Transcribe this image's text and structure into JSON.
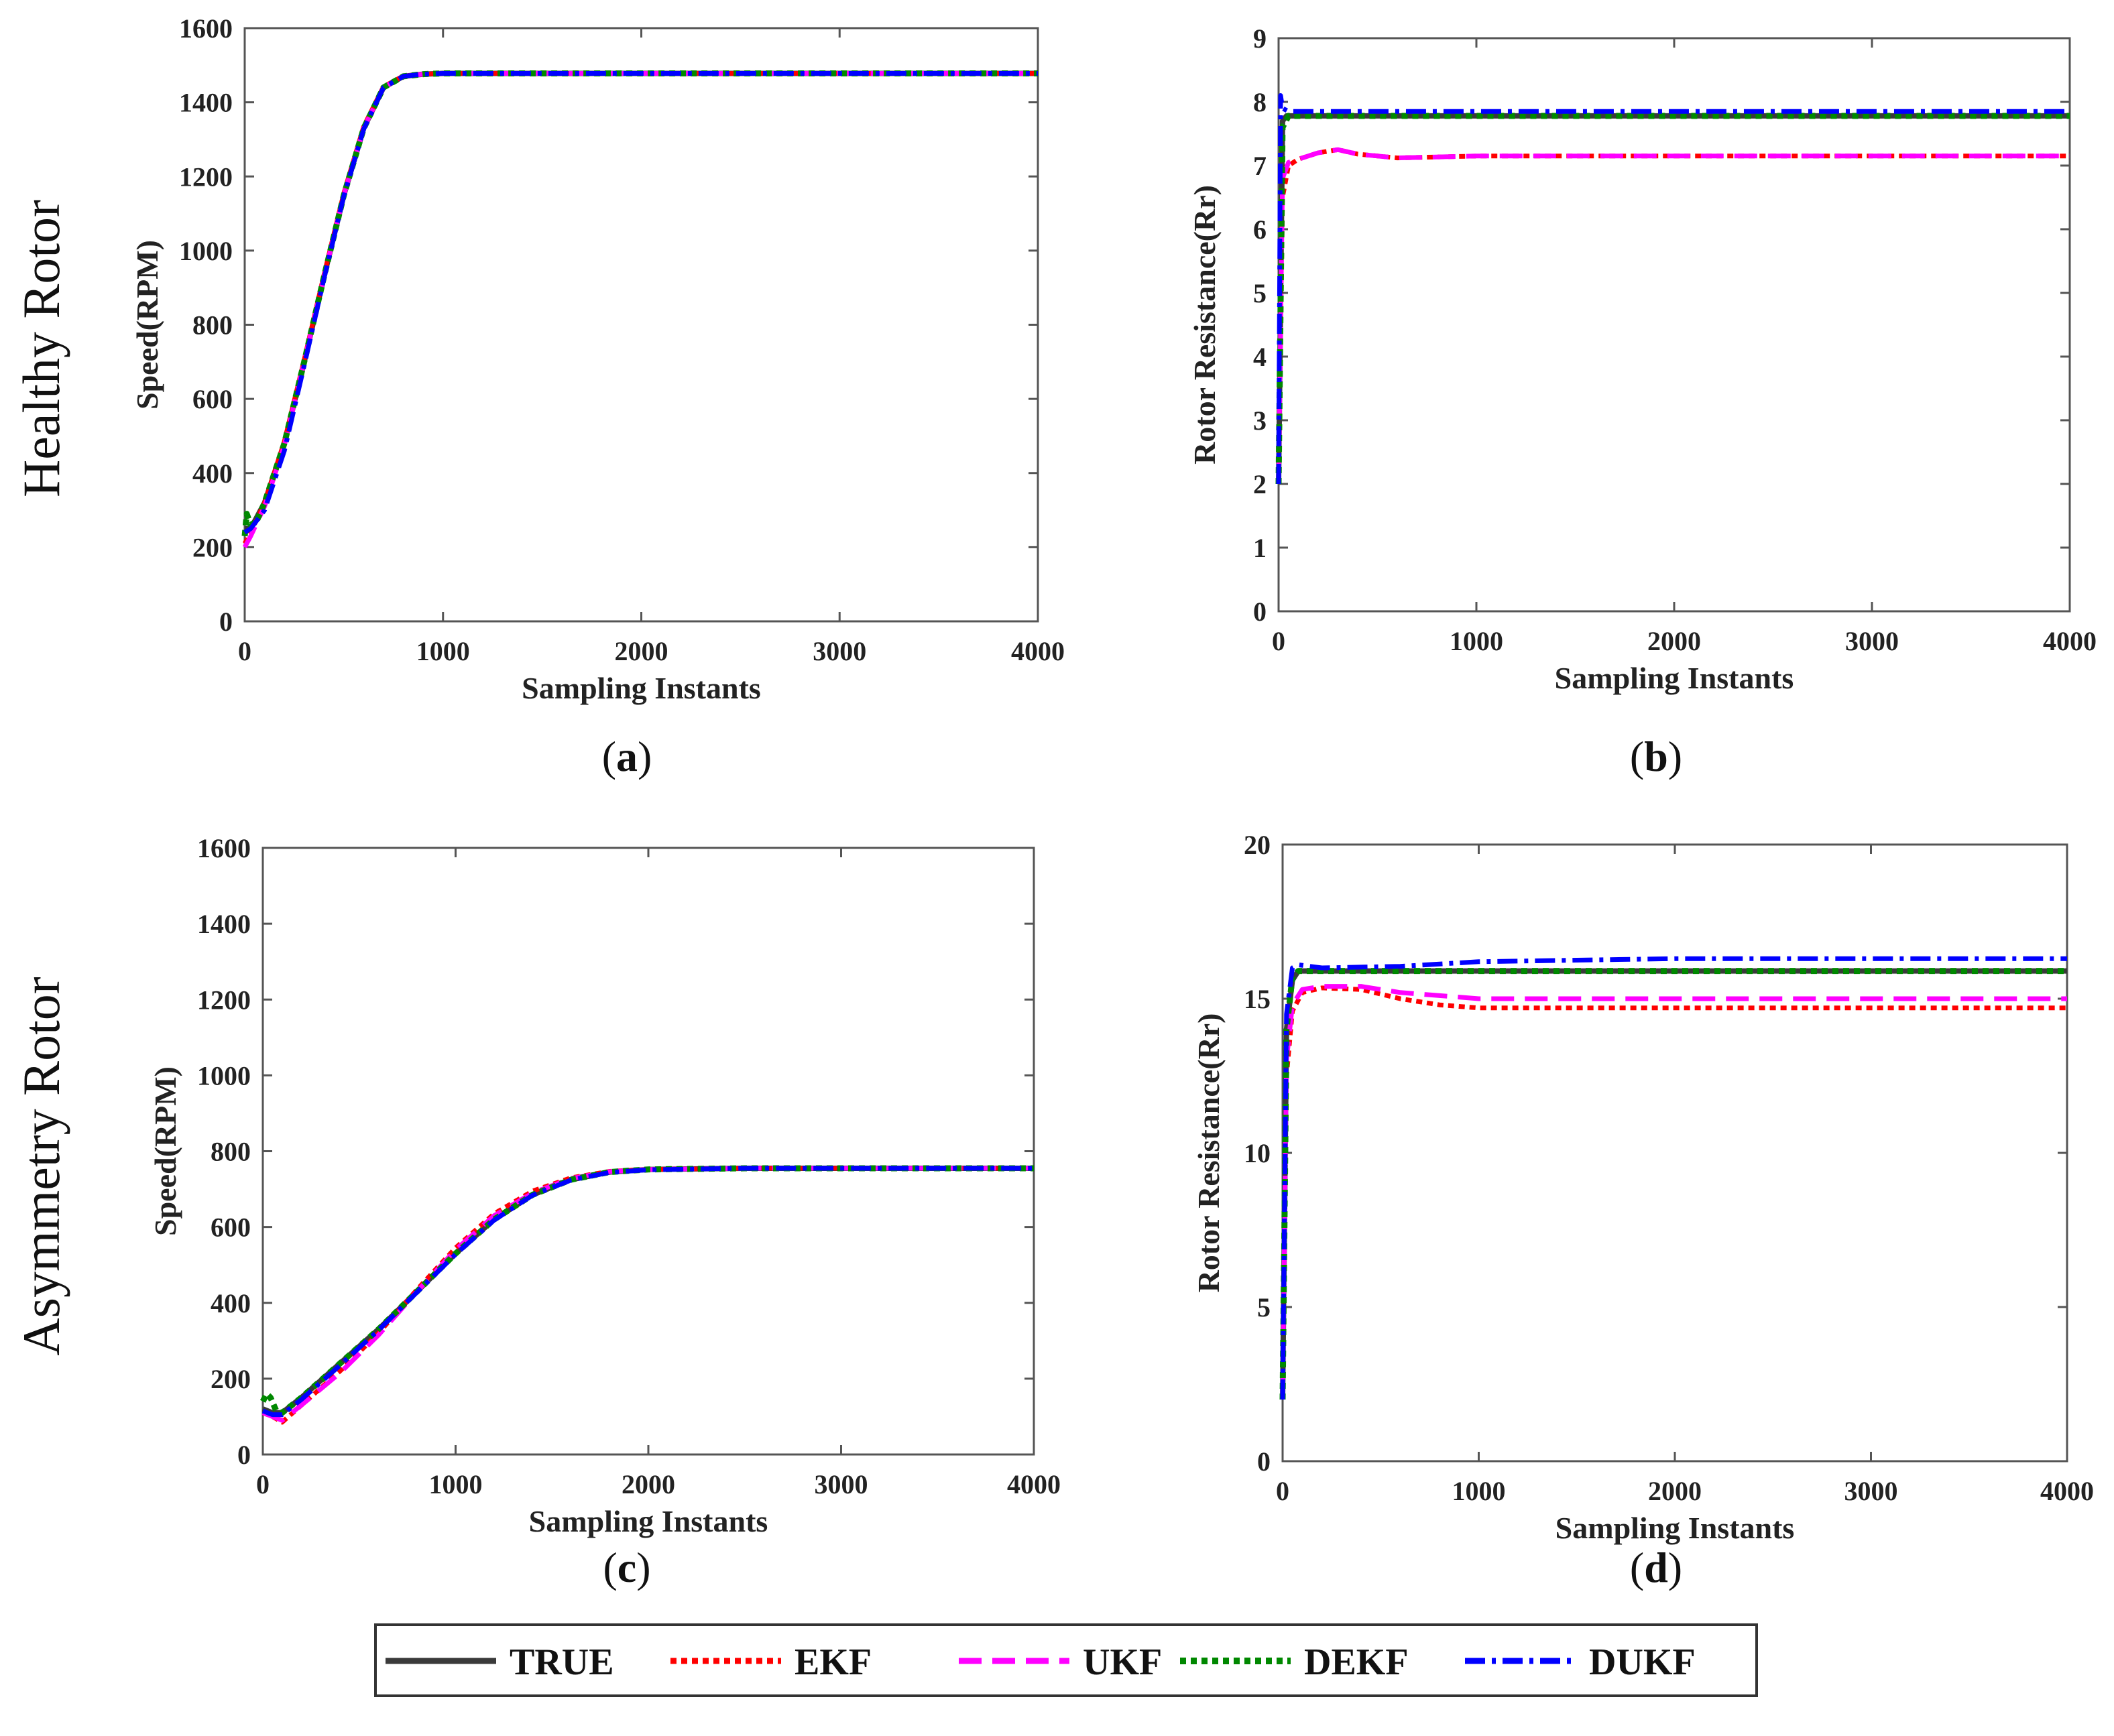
{
  "row_labels": [
    "Healthy Rotor",
    "Asymmetry Rotor"
  ],
  "legend": [
    {
      "label": "TRUE",
      "color": "#3a3a3a",
      "style": "solid"
    },
    {
      "label": "EKF",
      "color": "#ff0000",
      "style": "dotted"
    },
    {
      "label": "UKF",
      "color": "#ff00ff",
      "style": "dashed"
    },
    {
      "label": "DEKF",
      "color": "#008800",
      "style": "dotted"
    },
    {
      "label": "DUKF",
      "color": "#0000ff",
      "style": "dashdot"
    }
  ],
  "chart_data": [
    {
      "id": "a",
      "type": "line",
      "caption": "a",
      "xlabel": "Sampling Instants",
      "ylabel": "Speed(RPM)",
      "xlim": [
        0,
        4000
      ],
      "ylim": [
        0,
        1600
      ],
      "xticks": [
        0,
        1000,
        2000,
        3000,
        4000
      ],
      "yticks": [
        0,
        200,
        400,
        600,
        800,
        1000,
        1200,
        1400,
        1600
      ],
      "series": [
        {
          "name": "TRUE",
          "x": [
            0,
            30,
            100,
            200,
            300,
            400,
            500,
            600,
            700,
            800,
            900,
            1000,
            1500,
            4000
          ],
          "y": [
            250,
            250,
            320,
            480,
            700,
            930,
            1150,
            1330,
            1440,
            1470,
            1476,
            1478,
            1478,
            1478
          ]
        },
        {
          "name": "EKF",
          "x": [
            0,
            30,
            100,
            200,
            300,
            400,
            500,
            600,
            700,
            800,
            900,
            1000,
            1500,
            4000
          ],
          "y": [
            210,
            240,
            320,
            485,
            705,
            935,
            1155,
            1335,
            1442,
            1471,
            1476,
            1478,
            1478,
            1478
          ]
        },
        {
          "name": "UKF",
          "x": [
            0,
            30,
            100,
            200,
            300,
            400,
            500,
            600,
            700,
            800,
            900,
            1000,
            1500,
            4000
          ],
          "y": [
            200,
            230,
            310,
            475,
            700,
            930,
            1150,
            1330,
            1440,
            1470,
            1476,
            1478,
            1478,
            1478
          ]
        },
        {
          "name": "DEKF",
          "x": [
            0,
            10,
            30,
            60,
            100,
            200,
            300,
            400,
            500,
            600,
            700,
            800,
            900,
            1000,
            1500,
            4000
          ],
          "y": [
            230,
            290,
            260,
            270,
            320,
            480,
            700,
            930,
            1150,
            1330,
            1440,
            1470,
            1476,
            1478,
            1478,
            1478
          ]
        },
        {
          "name": "DUKF",
          "x": [
            0,
            30,
            100,
            200,
            300,
            400,
            500,
            600,
            700,
            800,
            900,
            1000,
            1500,
            4000
          ],
          "y": [
            240,
            250,
            300,
            460,
            690,
            925,
            1148,
            1328,
            1440,
            1470,
            1476,
            1478,
            1478,
            1478
          ]
        }
      ]
    },
    {
      "id": "b",
      "type": "line",
      "caption": "b",
      "xlabel": "Sampling Instants",
      "ylabel": "Rotor Resistance(Rr)",
      "xlim": [
        0,
        4000
      ],
      "ylim": [
        0,
        9
      ],
      "xticks": [
        0,
        1000,
        2000,
        3000,
        4000
      ],
      "yticks": [
        0,
        1,
        2,
        3,
        4,
        5,
        6,
        7,
        8,
        9
      ],
      "series": [
        {
          "name": "TRUE",
          "x": [
            0,
            20,
            40,
            4000
          ],
          "y": [
            2,
            7.7,
            7.78,
            7.78
          ]
        },
        {
          "name": "EKF",
          "x": [
            0,
            20,
            50,
            100,
            200,
            300,
            400,
            600,
            1000,
            4000
          ],
          "y": [
            2,
            6.5,
            7.0,
            7.1,
            7.2,
            7.25,
            7.18,
            7.12,
            7.15,
            7.15
          ]
        },
        {
          "name": "UKF",
          "x": [
            0,
            20,
            50,
            100,
            200,
            300,
            400,
            600,
            1000,
            4000
          ],
          "y": [
            2,
            6.8,
            7.05,
            7.1,
            7.2,
            7.25,
            7.18,
            7.12,
            7.15,
            7.15
          ]
        },
        {
          "name": "DEKF",
          "x": [
            0,
            20,
            50,
            4000
          ],
          "y": [
            2,
            7.6,
            7.78,
            7.78
          ]
        },
        {
          "name": "DUKF",
          "x": [
            0,
            10,
            20,
            50,
            4000
          ],
          "y": [
            2,
            8.1,
            7.9,
            7.85,
            7.85
          ]
        }
      ]
    },
    {
      "id": "c",
      "type": "line",
      "caption": "c",
      "xlabel": "Sampling Instants",
      "ylabel": "Speed(RPM)",
      "xlim": [
        0,
        4000
      ],
      "ylim": [
        0,
        1600
      ],
      "xticks": [
        0,
        1000,
        2000,
        3000,
        4000
      ],
      "yticks": [
        0,
        200,
        400,
        600,
        800,
        1000,
        1200,
        1400,
        1600
      ],
      "series": [
        {
          "name": "TRUE",
          "x": [
            0,
            50,
            100,
            200,
            400,
            600,
            800,
            1000,
            1200,
            1400,
            1600,
            1800,
            2000,
            2500,
            4000
          ],
          "y": [
            120,
            110,
            110,
            150,
            240,
            330,
            430,
            530,
            620,
            685,
            725,
            745,
            752,
            755,
            755
          ]
        },
        {
          "name": "EKF",
          "x": [
            0,
            50,
            100,
            200,
            400,
            600,
            800,
            1000,
            1200,
            1400,
            1600,
            1800,
            2000,
            2500,
            4000
          ],
          "y": [
            110,
            100,
            85,
            130,
            220,
            320,
            435,
            545,
            635,
            695,
            730,
            747,
            752,
            755,
            755
          ]
        },
        {
          "name": "UKF",
          "x": [
            0,
            50,
            100,
            200,
            400,
            600,
            800,
            1000,
            1200,
            1400,
            1600,
            1800,
            2000,
            2500,
            4000
          ],
          "y": [
            110,
            100,
            90,
            130,
            215,
            315,
            430,
            540,
            630,
            690,
            728,
            746,
            752,
            755,
            755
          ]
        },
        {
          "name": "DEKF",
          "x": [
            0,
            20,
            40,
            70,
            100,
            200,
            400,
            600,
            800,
            1000,
            1200,
            1400,
            1600,
            1800,
            2000,
            2500,
            4000
          ],
          "y": [
            140,
            160,
            150,
            115,
            110,
            150,
            240,
            330,
            430,
            530,
            620,
            685,
            725,
            745,
            752,
            755,
            755
          ]
        },
        {
          "name": "DUKF",
          "x": [
            0,
            50,
            100,
            200,
            400,
            600,
            800,
            1000,
            1200,
            1400,
            1600,
            1800,
            2000,
            2500,
            4000
          ],
          "y": [
            115,
            105,
            105,
            145,
            235,
            328,
            428,
            528,
            618,
            684,
            724,
            744,
            751,
            755,
            755
          ]
        }
      ]
    },
    {
      "id": "d",
      "type": "line",
      "caption": "d",
      "xlabel": "Sampling Instants",
      "ylabel": "Rotor Resistance(Rr)",
      "xlim": [
        0,
        4000
      ],
      "ylim": [
        0,
        20
      ],
      "xticks": [
        0,
        1000,
        2000,
        3000,
        4000
      ],
      "yticks": [
        0,
        5,
        10,
        15,
        20
      ],
      "series": [
        {
          "name": "TRUE",
          "x": [
            0,
            20,
            50,
            80,
            4000
          ],
          "y": [
            2,
            14,
            15.6,
            15.9,
            15.9
          ]
        },
        {
          "name": "EKF",
          "x": [
            0,
            20,
            50,
            100,
            200,
            400,
            600,
            800,
            1000,
            1500,
            4000
          ],
          "y": [
            2,
            12.5,
            14.6,
            15.2,
            15.35,
            15.3,
            15.0,
            14.8,
            14.7,
            14.7,
            14.7
          ]
        },
        {
          "name": "UKF",
          "x": [
            0,
            20,
            50,
            100,
            200,
            400,
            600,
            800,
            1000,
            1500,
            4000
          ],
          "y": [
            2,
            13,
            14.8,
            15.3,
            15.4,
            15.4,
            15.2,
            15.1,
            15.0,
            15.0,
            15.0
          ]
        },
        {
          "name": "DEKF",
          "x": [
            0,
            20,
            50,
            80,
            4000
          ],
          "y": [
            2,
            14,
            15.7,
            15.9,
            15.9
          ]
        },
        {
          "name": "DUKF",
          "x": [
            0,
            20,
            50,
            80,
            200,
            600,
            1000,
            1500,
            2000,
            4000
          ],
          "y": [
            2,
            14.5,
            16.0,
            16.1,
            16.0,
            16.05,
            16.2,
            16.25,
            16.3,
            16.3
          ]
        }
      ]
    }
  ]
}
